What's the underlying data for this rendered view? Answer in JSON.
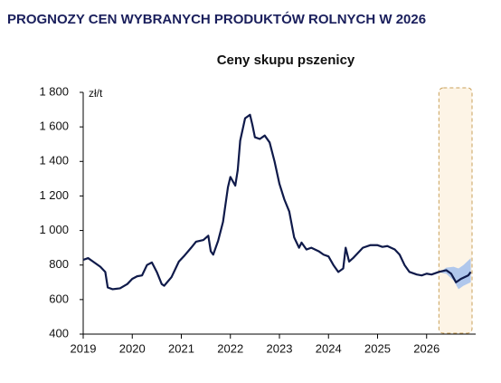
{
  "chart_data": {
    "type": "line",
    "title": "PROGNOZY CEN WYBRANYCH PRODUKTÓW ROLNYCH W 2026",
    "subtitle": "Ceny skupu pszenicy",
    "y_unit_label": "zł/t",
    "x": [
      2019.0,
      2019.1,
      2019.2,
      2019.35,
      2019.45,
      2019.5,
      2019.6,
      2019.75,
      2019.9,
      2020.0,
      2020.1,
      2020.2,
      2020.3,
      2020.4,
      2020.5,
      2020.6,
      2020.65,
      2020.8,
      2020.95,
      2021.05,
      2021.2,
      2021.3,
      2021.45,
      2021.55,
      2021.6,
      2021.65,
      2021.75,
      2021.85,
      2021.95,
      2022.0,
      2022.1,
      2022.15,
      2022.2,
      2022.3,
      2022.4,
      2022.45,
      2022.5,
      2022.6,
      2022.7,
      2022.8,
      2022.9,
      2023.0,
      2023.1,
      2023.2,
      2023.3,
      2023.4,
      2023.45,
      2023.55,
      2023.65,
      2023.8,
      2023.9,
      2024.0,
      2024.1,
      2024.2,
      2024.3,
      2024.35,
      2024.42,
      2024.5,
      2024.6,
      2024.7,
      2024.85,
      2025.0,
      2025.1,
      2025.2,
      2025.35,
      2025.45,
      2025.55,
      2025.65,
      2025.8,
      2025.9,
      2026.0,
      2026.1,
      2026.25,
      2026.4,
      2026.5,
      2026.6,
      2026.7,
      2026.85,
      2026.9
    ],
    "values": [
      830,
      840,
      820,
      790,
      760,
      670,
      660,
      665,
      690,
      720,
      735,
      740,
      800,
      815,
      760,
      690,
      680,
      730,
      820,
      850,
      900,
      935,
      945,
      970,
      880,
      860,
      940,
      1050,
      1250,
      1310,
      1260,
      1350,
      1520,
      1650,
      1670,
      1610,
      1540,
      1530,
      1550,
      1510,
      1400,
      1270,
      1180,
      1110,
      960,
      900,
      930,
      890,
      900,
      880,
      860,
      850,
      800,
      760,
      780,
      900,
      820,
      840,
      870,
      900,
      915,
      915,
      905,
      910,
      890,
      860,
      800,
      760,
      745,
      740,
      750,
      745,
      760,
      770,
      750,
      700,
      720,
      740,
      760
    ],
    "color": "#0f1a4a",
    "band": {
      "x": [
        2026.3,
        2026.4,
        2026.55,
        2026.65,
        2026.75,
        2026.9
      ],
      "upper": [
        765,
        785,
        790,
        780,
        800,
        840
      ],
      "lower": [
        755,
        750,
        710,
        660,
        680,
        700
      ],
      "color": "#8fb4ee"
    },
    "highlight_x": [
      2026.25,
      2027
    ],
    "xlim": [
      2019,
      2027
    ],
    "xticks": [
      2019,
      2020,
      2021,
      2022,
      2023,
      2024,
      2025,
      2026
    ],
    "ylim": [
      400,
      1800
    ],
    "yticks": [
      400,
      600,
      800,
      {
        "value": 1000,
        "label": "1 000"
      },
      {
        "value": 1200,
        "label": "1 200"
      },
      {
        "value": 1400,
        "label": "1 400"
      },
      {
        "value": 1600,
        "label": "1 600"
      },
      {
        "value": 1800,
        "label": "1 800"
      }
    ],
    "grid": false
  }
}
